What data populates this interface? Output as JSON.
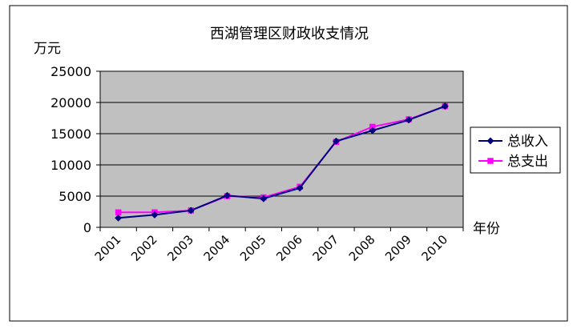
{
  "chart_data": {
    "type": "line",
    "title": "西湖管理区财政收支情况",
    "ylabel": "万元",
    "xlabel": "年份",
    "categories": [
      "2001",
      "2002",
      "2003",
      "2004",
      "2005",
      "2006",
      "2007",
      "2008",
      "2009",
      "2010"
    ],
    "ylim": [
      0,
      25000
    ],
    "yticks": [
      0,
      5000,
      10000,
      15000,
      20000,
      25000
    ],
    "grid": true,
    "legend_position": "right",
    "series": [
      {
        "name": "总收入",
        "color": "#000080",
        "marker": "diamond",
        "values": [
          1500,
          2000,
          2700,
          5100,
          4600,
          6300,
          13800,
          15500,
          17200,
          19400
        ]
      },
      {
        "name": "总支出",
        "color": "#ff00ff",
        "marker": "square",
        "values": [
          2400,
          2400,
          2700,
          5000,
          4800,
          6500,
          13700,
          16100,
          17300,
          19400
        ]
      }
    ],
    "colors": {
      "plot_background": "#c0c0c0",
      "gridline": "#000000",
      "frame": "#000000"
    }
  }
}
